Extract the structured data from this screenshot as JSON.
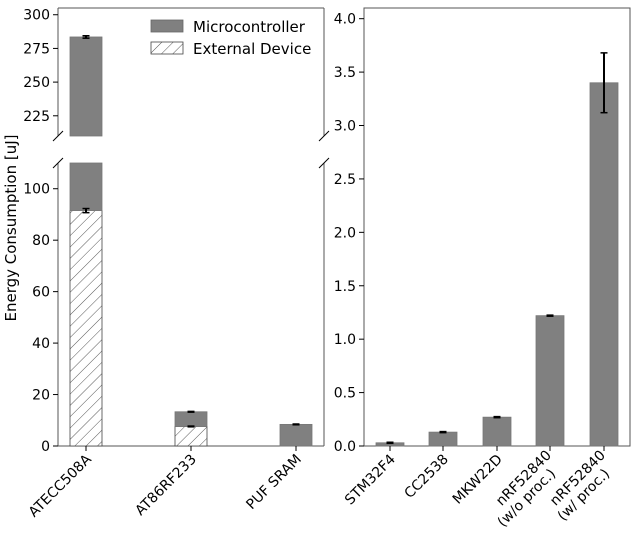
{
  "chart_data": [
    {
      "type": "bar",
      "stacked": true,
      "broken_y_axis": true,
      "ylabel": "Energy Consumption [uJ]",
      "categories": [
        "ATECC508A",
        "AT86RF233",
        "PUF SRAM"
      ],
      "series": [
        {
          "name": "External Device",
          "values": [
            91.5,
            7.6,
            0
          ],
          "hatch": "diagonal",
          "color": "#ffffff"
        },
        {
          "name": "Microcontroller",
          "values": [
            192.0,
            5.7,
            8.4
          ],
          "color": "#808080"
        }
      ],
      "totals": [
        283.5,
        13.3,
        8.4
      ],
      "error_bars": {
        "ext": [
          0.8,
          0.15,
          null
        ],
        "total": [
          0.9,
          0.15,
          0.15
        ]
      },
      "ylim_lower": [
        0,
        110
      ],
      "ylim_upper": [
        210,
        305
      ],
      "yticks_lower": [
        "0",
        "20",
        "40",
        "60",
        "80",
        "100"
      ],
      "yticks_upper": [
        "225",
        "250",
        "275",
        "300"
      ],
      "grid": false,
      "legend": {
        "position": "top-right",
        "entries": [
          "Microcontroller",
          "External Device"
        ]
      }
    },
    {
      "type": "bar",
      "categories": [
        "STM32F4",
        "CC2538",
        "MKW22D",
        "nRF52840\n(w/o proc.)",
        "nRF52840\n(w/ proc.)"
      ],
      "series": [
        {
          "name": "Microcontroller",
          "values": [
            0.03,
            0.13,
            0.27,
            1.22,
            3.4
          ],
          "color": "#808080"
        }
      ],
      "error_bars": [
        0.005,
        0.005,
        0.005,
        0.005,
        0.28
      ],
      "ylim": [
        0,
        4.1
      ],
      "yticks": [
        "0.0",
        "0.5",
        "1.0",
        "1.5",
        "2.0",
        "2.5",
        "3.0",
        "3.5",
        "4.0"
      ],
      "grid": false
    }
  ]
}
